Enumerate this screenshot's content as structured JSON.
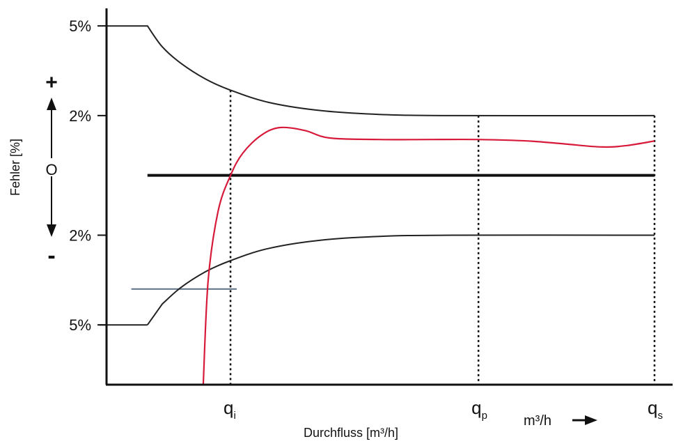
{
  "chart_data": {
    "type": "line",
    "ylabel": "Fehler [%]",
    "xlabel": "Durchfluss [m³/h]",
    "unit_label": "m³/h",
    "colors": {
      "tolerance": "#222222",
      "measured": "#d7193a",
      "reference": "#5b7183",
      "axis": "#111111"
    },
    "y_ticks": [
      {
        "value": 5,
        "label": "5%"
      },
      {
        "value": 2,
        "label": "2%"
      },
      {
        "value": -2,
        "label": "2%"
      },
      {
        "value": -5,
        "label": "5%"
      }
    ],
    "y_signs": {
      "plus": "+",
      "zero": "O",
      "minus": "-"
    },
    "x_marks": [
      {
        "letter": "q",
        "sub": "i",
        "x": 1.0
      },
      {
        "letter": "q",
        "sub": "p",
        "x": 3.0
      },
      {
        "letter": "q",
        "sub": "s",
        "x": 4.42
      }
    ],
    "xlim": [
      0,
      4.5
    ],
    "ylim": [
      -7.0,
      5.4
    ],
    "series": [
      {
        "role": "upper-tolerance",
        "x": [
          0,
          0.33,
          0.45,
          0.6,
          0.8,
          1.0,
          1.3,
          1.7,
          2.2,
          2.8,
          4.42
        ],
        "y": [
          5,
          5,
          4.3,
          3.75,
          3.22,
          2.85,
          2.45,
          2.18,
          2.04,
          2.0,
          2.0
        ]
      },
      {
        "role": "lower-tolerance",
        "x": [
          0.33,
          0.45,
          0.6,
          0.8,
          1.0,
          1.3,
          1.7,
          2.2,
          2.8,
          4.42
        ],
        "y": [
          -5,
          -4.3,
          -3.75,
          -3.22,
          -2.85,
          -2.45,
          -2.18,
          -2.04,
          -2.0,
          -2.0
        ]
      },
      {
        "role": "measured-error",
        "x": [
          0.78,
          0.82,
          0.9,
          1.0,
          1.1,
          1.25,
          1.4,
          1.6,
          1.8,
          2.2,
          2.6,
          3.0,
          3.4,
          3.7,
          4.0,
          4.2,
          4.42
        ],
        "y": [
          -7.0,
          -3.5,
          -1.2,
          0.0,
          0.75,
          1.35,
          1.6,
          1.5,
          1.25,
          1.2,
          1.2,
          1.2,
          1.15,
          1.05,
          0.95,
          1.0,
          1.15
        ]
      }
    ],
    "reference_lines": [
      {
        "role": "zero-line",
        "x": [
          0.33,
          4.42
        ],
        "y": 0
      },
      {
        "role": "limit-marker",
        "x": [
          0.2,
          1.05
        ],
        "y": -3.8
      }
    ]
  }
}
